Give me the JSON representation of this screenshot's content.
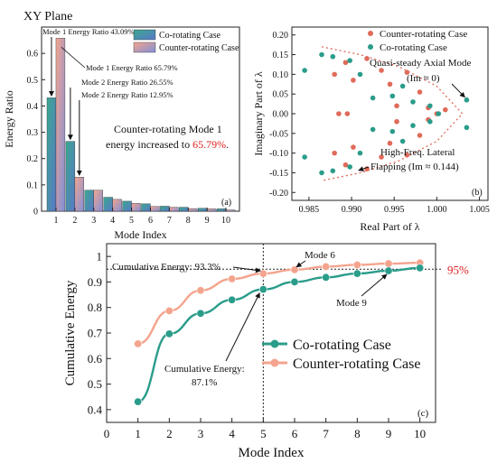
{
  "figure_title": "XY Plane",
  "colors": {
    "co": "#2a9c8a",
    "co_light": "#6fd0b8",
    "counter": "#f4a48e",
    "counter_dark": "#e06b5a",
    "red_text": "#e02020",
    "bar_blue": "#4f6fbf"
  },
  "chart_data": [
    {
      "type": "bar",
      "panel_label": "(a)",
      "xlabel": "Mode Index",
      "ylabel": "Energy Ratio",
      "categories": [
        1,
        2,
        3,
        4,
        5,
        6,
        7,
        8,
        9,
        10
      ],
      "ylim": [
        0,
        0.7
      ],
      "yticks": [
        0.0,
        0.1,
        0.2,
        0.3,
        0.4,
        0.5,
        0.6
      ],
      "series": [
        {
          "name": "Co-rotating Case",
          "values": [
            0.431,
            0.2655,
            0.08,
            0.053,
            0.038,
            0.028,
            0.019,
            0.015,
            0.011,
            0.009
          ]
        },
        {
          "name": "Counter-rotating Case",
          "values": [
            0.6579,
            0.1295,
            0.08,
            0.045,
            0.03,
            0.018,
            0.015,
            0.01,
            0.009,
            0.005
          ]
        }
      ],
      "annotations": [
        "Mode 1 Energy Ratio 43.09%",
        "Mode 1 Energy Ratio 65.79%",
        "Mode 2 Energy Ratio 26.55%",
        "Mode 2 Energy Ratio 12.95%"
      ],
      "note_main": "Counter-rotating Mode 1",
      "note_prefix": "energy increased to ",
      "note_value": "65.79%",
      "note_suffix": "."
    },
    {
      "type": "scatter",
      "panel_label": "(b)",
      "xlabel": "Real Part of λ",
      "ylabel": "Imaginary Part of λ",
      "xlim": [
        0.983,
        1.006
      ],
      "ylim": [
        -0.22,
        0.22
      ],
      "xticks": [
        0.985,
        0.99,
        0.995,
        1.0,
        1.005
      ],
      "xtick_labels": [
        "0.985",
        "0.990",
        "0.995",
        "1.000",
        "1.005"
      ],
      "yticks": [
        -0.2,
        -0.15,
        -0.1,
        -0.05,
        0.0,
        0.05,
        0.1,
        0.15,
        0.2
      ],
      "ytick_labels": [
        "-0.20",
        "-0.15",
        "-0.10",
        "-0.05",
        "0.00",
        "0.05",
        "0.10",
        "0.15",
        "0.20"
      ],
      "boundary_curve": {
        "x": [
          0.9865,
          0.991,
          0.9955,
          1.0,
          1.003,
          1.0,
          0.9955,
          0.991,
          0.9865
        ],
        "y": [
          0.17,
          0.15,
          0.12,
          0.07,
          0.0,
          -0.07,
          -0.12,
          -0.15,
          -0.17
        ]
      },
      "series": [
        {
          "name": "Co-rotating Case",
          "points": [
            [
              0.9865,
              0.15
            ],
            [
              0.9865,
              -0.15
            ],
            [
              0.9845,
              0.11
            ],
            [
              0.9845,
              -0.11
            ],
            [
              0.9878,
              0.145
            ],
            [
              0.9878,
              -0.145
            ],
            [
              0.9898,
              0.135
            ],
            [
              0.9898,
              -0.135
            ],
            [
              0.991,
              0.1
            ],
            [
              0.991,
              -0.1
            ],
            [
              0.9925,
              0.04
            ],
            [
              0.9925,
              -0.04
            ],
            [
              0.9948,
              0.045
            ],
            [
              0.9948,
              -0.045
            ],
            [
              0.996,
              0.07
            ],
            [
              0.996,
              -0.07
            ],
            [
              0.9972,
              0.03
            ],
            [
              0.9972,
              -0.03
            ],
            [
              0.9992,
              0.02
            ],
            [
              0.9992,
              -0.02
            ],
            [
              1.0002,
              0.0
            ],
            [
              1.0035,
              0.035
            ],
            [
              1.0035,
              -0.035
            ]
          ]
        },
        {
          "name": "Counter-rotating Case",
          "points": [
            [
              0.988,
              0.1
            ],
            [
              0.988,
              -0.1
            ],
            [
              0.9893,
              0.13
            ],
            [
              0.9893,
              -0.13
            ],
            [
              0.9902,
              0.085
            ],
            [
              0.9902,
              -0.085
            ],
            [
              0.9885,
              0.0
            ],
            [
              0.9895,
              0.0
            ],
            [
              0.9918,
              0.14
            ],
            [
              0.9918,
              -0.14
            ],
            [
              0.9935,
              0.11
            ],
            [
              0.9935,
              -0.11
            ],
            [
              0.9945,
              0.075
            ],
            [
              0.9945,
              -0.075
            ],
            [
              0.9953,
              0.02
            ],
            [
              0.9953,
              -0.02
            ],
            [
              0.9965,
              0.105
            ],
            [
              0.9965,
              -0.105
            ],
            [
              0.998,
              0.055
            ],
            [
              0.998,
              -0.055
            ],
            [
              0.999,
              0.015
            ],
            [
              0.999,
              -0.015
            ],
            [
              1.0,
              0.0
            ],
            [
              1.001,
              0.01
            ]
          ]
        }
      ],
      "annotation_top_1": "Quasi-steady Axial Mode",
      "annotation_top_2": "(Im ≈ 0)",
      "annotation_bottom_1": "High-Freq. Lateral",
      "annotation_bottom_2": "Flapping (Im ≈ 0.144)"
    },
    {
      "type": "line",
      "panel_label": "(c)",
      "xlabel": "Mode Index",
      "ylabel": "Cumulative Energy",
      "xlim": [
        0,
        10.5
      ],
      "ylim": [
        0.35,
        1.05
      ],
      "xticks": [
        0,
        1,
        2,
        3,
        4,
        5,
        6,
        7,
        8,
        9,
        10
      ],
      "yticks": [
        0.4,
        0.5,
        0.6,
        0.7,
        0.8,
        0.9,
        1.0
      ],
      "x": [
        1,
        2,
        3,
        4,
        5,
        6,
        7,
        8,
        9,
        10
      ],
      "series": [
        {
          "name": "Co-rotating Case",
          "values": [
            0.431,
            0.697,
            0.777,
            0.83,
            0.871,
            0.9,
            0.918,
            0.933,
            0.944,
            0.955
          ]
        },
        {
          "name": "Counter-rotating Case",
          "values": [
            0.658,
            0.787,
            0.867,
            0.912,
            0.933,
            0.948,
            0.96,
            0.967,
            0.972,
            0.975
          ]
        }
      ],
      "threshold": 0.95,
      "threshold_label": "95%",
      "vline_x": 5,
      "annotations": {
        "cum_counter": "Cumulative Energy: 93.3%",
        "cum_co_1": "Cumulative Energy:",
        "cum_co_2": "87.1%",
        "mode6": "Mode 6",
        "mode9": "Mode 9"
      }
    }
  ]
}
